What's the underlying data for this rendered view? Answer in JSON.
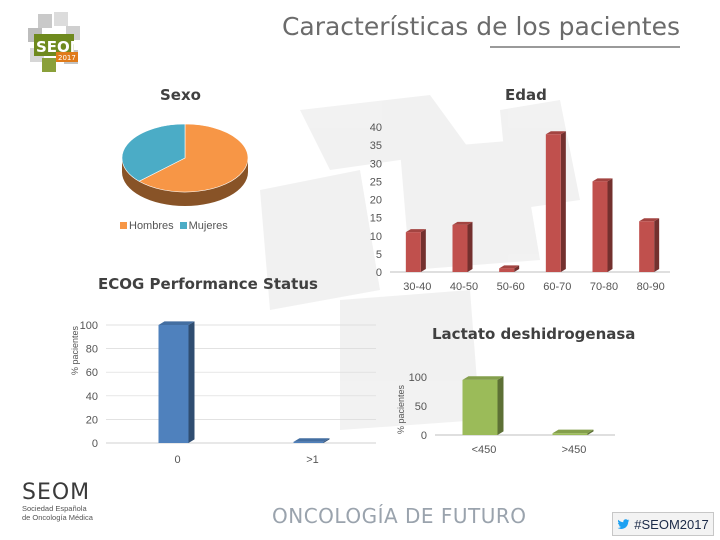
{
  "page": {
    "title": "Características de los pacientes"
  },
  "colors": {
    "orange": "#F79646",
    "teal": "#4BACC6",
    "blue": "#4F81BD",
    "red": "#C0504D",
    "green": "#9BBB59"
  },
  "footer": {
    "seom": "SEOM",
    "sub_line1": "Sociedad Española",
    "sub_line2": "de Oncología Médica",
    "tagline": "ONCOLOGÍA DE FUTURO",
    "hashtag": "#SEOM2017",
    "logo_text": "SEOM",
    "logo_year": "2017"
  },
  "chart_data": [
    {
      "type": "pie",
      "title": "Sexo",
      "categories": [
        "Hombres",
        "Mujeres"
      ],
      "values": [
        63,
        37
      ],
      "colors": [
        "#F79646",
        "#4BACC6"
      ],
      "legend": "bottom"
    },
    {
      "type": "bar",
      "title": "Edad",
      "categories": [
        "30-40",
        "40-50",
        "50-60",
        "60-70",
        "70-80",
        "80-90"
      ],
      "values": [
        11,
        13,
        1,
        38,
        25,
        14
      ],
      "ylim": [
        0,
        40
      ],
      "yticks": [
        "0",
        "5",
        "10",
        "15",
        "20",
        "25",
        "30",
        "35",
        "40"
      ],
      "color": "#C0504D"
    },
    {
      "type": "bar",
      "title": "ECOG Performance Status",
      "ylabel": "% pacientes",
      "categories": [
        "0",
        ">1"
      ],
      "values": [
        100,
        1
      ],
      "ylim": [
        0,
        100
      ],
      "yticks": [
        "0",
        "20",
        "40",
        "60",
        "80",
        "100"
      ],
      "color": "#4F81BD"
    },
    {
      "type": "bar",
      "title": "Lactato deshidrogenasa",
      "ylabel": "% pacientes",
      "categories": [
        "<450",
        ">450"
      ],
      "values": [
        95,
        3
      ],
      "ylim": [
        0,
        100
      ],
      "yticks": [
        "0",
        "50",
        "100"
      ],
      "color": "#9BBB59"
    }
  ]
}
